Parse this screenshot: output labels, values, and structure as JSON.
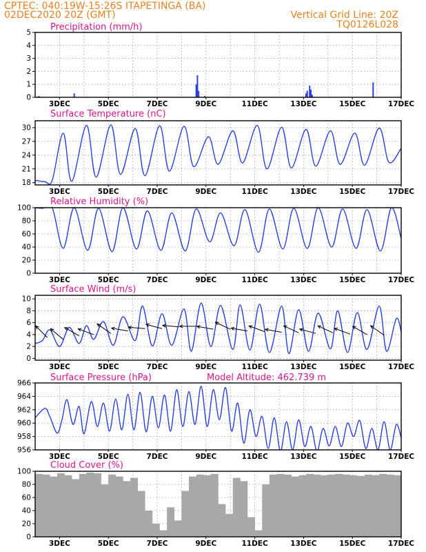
{
  "header": {
    "line1_left": "CPTEC:   040:19W-15:26S   ITAPETINGA (BA)",
    "line2_left": "02DEC2020 20Z (GMT)",
    "line1_right": "Vertical Grid Line: 20Z",
    "line2_right": "TQ0126L028"
  },
  "colors": {
    "header": "#e8821e",
    "title": "#e0148c",
    "line": "#2a3fe0",
    "cloud": "#a8a8a8",
    "arrow": "#000000"
  },
  "chart_data": [
    {
      "type": "bar",
      "title": "Precipitation (mm/h)",
      "ylim": [
        0,
        5
      ],
      "yticks": [
        0,
        1,
        2,
        3,
        4,
        5
      ],
      "xticks": [
        "3DEC",
        "5DEC",
        "7DEC",
        "9DEC",
        "11DEC",
        "13DEC",
        "15DEC",
        "17DEC"
      ],
      "series": [
        {
          "x": [
            0.15,
            1.6,
            6.6,
            6.65,
            6.7,
            6.95,
            11.1,
            11.15,
            11.25,
            11.3,
            11.35,
            13.85
          ],
          "values": [
            0.1,
            0.3,
            1.0,
            1.7,
            0.5,
            0.1,
            0.3,
            0.5,
            0.9,
            0.6,
            0.2,
            1.15
          ]
        }
      ]
    },
    {
      "type": "line",
      "title": "Surface Temperature (nC)",
      "ylim": [
        17.5,
        31.5
      ],
      "yticks": [
        18,
        21,
        24,
        27,
        30
      ],
      "xticks": [
        "3DEC",
        "5DEC",
        "7DEC",
        "9DEC",
        "11DEC",
        "13DEC",
        "15DEC",
        "17DEC"
      ],
      "series": [
        {
          "x": [
            0,
            0.4,
            0.7,
            1.15,
            1.5,
            2.1,
            2.5,
            3.1,
            3.5,
            4.1,
            4.5,
            5.1,
            5.5,
            6.1,
            6.5,
            7.1,
            7.5,
            8.1,
            8.5,
            9.1,
            9.5,
            10.1,
            10.5,
            11.1,
            11.5,
            12.1,
            12.5,
            13.1,
            13.5,
            14.1,
            14.5,
            15.0
          ],
          "values": [
            18.5,
            18.2,
            18.5,
            28.8,
            18.3,
            30.5,
            19.2,
            30.6,
            19.8,
            29.8,
            19.5,
            30.4,
            20.5,
            30.3,
            21.5,
            28.0,
            22.0,
            29.3,
            22.3,
            30.5,
            21.0,
            30.1,
            21.2,
            29.6,
            21.6,
            29.3,
            22.0,
            28.8,
            21.8,
            29.9,
            22.4,
            25.5
          ]
        }
      ]
    },
    {
      "type": "line",
      "title": "Relative Humidity (%)",
      "ylim": [
        0,
        100
      ],
      "yticks": [
        0,
        20,
        40,
        60,
        80,
        100
      ],
      "xticks": [
        "3DEC",
        "5DEC",
        "7DEC",
        "9DEC",
        "11DEC",
        "13DEC",
        "15DEC",
        "17DEC"
      ],
      "series": [
        {
          "x": [
            0,
            0.3,
            0.7,
            1.15,
            1.6,
            2.15,
            2.6,
            3.15,
            3.6,
            4.15,
            4.6,
            5.15,
            5.6,
            6.15,
            6.6,
            7.15,
            7.6,
            8.15,
            8.6,
            9.15,
            9.6,
            10.15,
            10.6,
            11.15,
            11.6,
            12.15,
            12.6,
            13.15,
            13.6,
            14.15,
            14.6,
            15.0
          ],
          "values": [
            100,
            99,
            100,
            38,
            100,
            35,
            99,
            33,
            100,
            37,
            95,
            35,
            92,
            34,
            98,
            48,
            92,
            42,
            97,
            32,
            98,
            37,
            99,
            38,
            100,
            40,
            98,
            38,
            97,
            34,
            100,
            53
          ]
        }
      ]
    },
    {
      "type": "line",
      "title": "Surface Wind (m/s)",
      "ylim": [
        -0.3,
        10.6
      ],
      "yticks": [
        0,
        2,
        4,
        6,
        8,
        10
      ],
      "xticks": [
        "3DEC",
        "5DEC",
        "7DEC",
        "9DEC",
        "11DEC",
        "13DEC",
        "15DEC",
        "17DEC"
      ],
      "series": [
        {
          "x": [
            0,
            0.3,
            0.6,
            1.0,
            1.4,
            1.8,
            2.1,
            2.4,
            2.8,
            3.2,
            3.6,
            4.1,
            4.4,
            4.8,
            5.2,
            5.6,
            6.1,
            6.4,
            6.8,
            7.2,
            7.6,
            8.1,
            8.4,
            8.8,
            9.2,
            9.6,
            10.1,
            10.4,
            10.8,
            11.2,
            11.6,
            12.1,
            12.4,
            12.8,
            13.2,
            13.6,
            14.1,
            14.4,
            14.8,
            15.0
          ],
          "values": [
            2.5,
            3.0,
            4.8,
            2.0,
            5.2,
            2.5,
            5.5,
            3.2,
            6.2,
            2.2,
            7.0,
            3.0,
            8.8,
            2.1,
            7.5,
            2.2,
            8.3,
            1.2,
            9.3,
            2.0,
            8.9,
            1.5,
            9.0,
            1.4,
            9.1,
            1.0,
            8.8,
            0.8,
            8.2,
            1.2,
            7.6,
            1.6,
            8.0,
            1.0,
            7.7,
            1.5,
            8.8,
            1.2,
            6.7,
            4.5
          ]
        }
      ],
      "wind_vectors": [
        {
          "x": 0.5,
          "speed": 3.5,
          "dir_deg": 225
        },
        {
          "x": 1.15,
          "speed": 3.2,
          "dir_deg": 230
        },
        {
          "x": 1.8,
          "speed": 3.8,
          "dir_deg": 240
        },
        {
          "x": 2.4,
          "speed": 4.0,
          "dir_deg": 250
        },
        {
          "x": 3.1,
          "speed": 4.2,
          "dir_deg": 235
        },
        {
          "x": 3.8,
          "speed": 4.6,
          "dir_deg": 260
        },
        {
          "x": 4.5,
          "speed": 5.0,
          "dir_deg": 265
        },
        {
          "x": 5.2,
          "speed": 5.0,
          "dir_deg": 255
        },
        {
          "x": 5.9,
          "speed": 5.3,
          "dir_deg": 265
        },
        {
          "x": 6.6,
          "speed": 5.4,
          "dir_deg": 270
        },
        {
          "x": 7.3,
          "speed": 4.9,
          "dir_deg": 260
        },
        {
          "x": 8.0,
          "speed": 4.9,
          "dir_deg": 245
        },
        {
          "x": 8.7,
          "speed": 4.6,
          "dir_deg": 260
        },
        {
          "x": 9.4,
          "speed": 4.5,
          "dir_deg": 250
        },
        {
          "x": 10.1,
          "speed": 4.4,
          "dir_deg": 260
        },
        {
          "x": 10.8,
          "speed": 4.3,
          "dir_deg": 245
        },
        {
          "x": 11.5,
          "speed": 4.2,
          "dir_deg": 255
        },
        {
          "x": 12.2,
          "speed": 4.3,
          "dir_deg": 245
        },
        {
          "x": 12.9,
          "speed": 4.1,
          "dir_deg": 250
        },
        {
          "x": 13.6,
          "speed": 4.0,
          "dir_deg": 240
        },
        {
          "x": 14.3,
          "speed": 3.9,
          "dir_deg": 235
        }
      ]
    },
    {
      "type": "line",
      "title": "Surface Pressure (hPa)",
      "annotation": "Model Altitude: 462.739  m",
      "ylim": [
        956,
        966
      ],
      "yticks": [
        956,
        958,
        960,
        962,
        964,
        966
      ],
      "xticks": [
        "3DEC",
        "5DEC",
        "7DEC",
        "9DEC",
        "11DEC",
        "13DEC",
        "15DEC",
        "17DEC"
      ],
      "series": [
        {
          "x": [
            0,
            0.4,
            0.6,
            0.9,
            1.1,
            1.3,
            1.55,
            1.8,
            2.0,
            2.3,
            2.55,
            2.8,
            3.05,
            3.3,
            3.55,
            3.8,
            4.05,
            4.3,
            4.55,
            4.8,
            5.05,
            5.3,
            5.55,
            5.8,
            6.05,
            6.3,
            6.55,
            6.8,
            7.05,
            7.3,
            7.55,
            7.8,
            8.05,
            8.3,
            8.55,
            8.8,
            9.05,
            9.3,
            9.55,
            9.8,
            10.05,
            10.3,
            10.55,
            10.8,
            11.05,
            11.3,
            11.55,
            11.8,
            12.05,
            12.3,
            12.55,
            12.8,
            13.05,
            13.3,
            13.55,
            13.8,
            14.05,
            14.3,
            14.55,
            14.8,
            15.0
          ],
          "values": [
            960.8,
            962.2,
            961.0,
            958.5,
            960.5,
            963.5,
            959.8,
            962.5,
            958.4,
            963.2,
            959.5,
            963.0,
            958.8,
            963.6,
            959.0,
            964.3,
            959.0,
            964.6,
            958.7,
            964.0,
            959.3,
            964.2,
            958.8,
            965.0,
            959.5,
            964.7,
            959.8,
            965.5,
            959.5,
            965.0,
            960.5,
            965.3,
            958.8,
            963.0,
            957.0,
            962.0,
            958.0,
            961.0,
            956.2,
            960.8,
            955.8,
            960.2,
            956.0,
            960.5,
            956.5,
            959.5,
            955.8,
            959.2,
            956.6,
            959.5,
            956.5,
            960.0,
            958.0,
            960.4,
            956.2,
            959.2,
            956.0,
            960.2,
            956.0,
            959.8,
            957.8
          ]
        }
      ]
    },
    {
      "type": "bar",
      "title": "Cloud Cover (%)",
      "ylim": [
        0,
        100
      ],
      "yticks": [
        0,
        20,
        40,
        60,
        80,
        100
      ],
      "xticks": [
        "3DEC",
        "5DEC",
        "7DEC",
        "9DEC",
        "11DEC",
        "13DEC",
        "15DEC",
        "17DEC"
      ],
      "series": [
        {
          "x": [
            0,
            0.3,
            0.6,
            0.9,
            1.2,
            1.5,
            1.8,
            2.1,
            2.4,
            2.7,
            3.0,
            3.3,
            3.6,
            3.9,
            4.2,
            4.5,
            4.8,
            5.1,
            5.4,
            5.7,
            6.0,
            6.3,
            6.6,
            6.9,
            7.2,
            7.5,
            7.8,
            8.1,
            8.4,
            8.7,
            9.0,
            9.3,
            9.6,
            9.9,
            10.2,
            10.5,
            10.8,
            11.1,
            11.4,
            11.7,
            12.0,
            12.3,
            12.6,
            12.9,
            13.2,
            13.5,
            13.8,
            14.1,
            14.4,
            14.7
          ],
          "values": [
            96,
            95,
            92,
            97,
            94,
            88,
            96,
            98,
            97,
            80,
            95,
            92,
            85,
            90,
            70,
            40,
            20,
            10,
            45,
            25,
            70,
            92,
            95,
            94,
            96,
            50,
            35,
            90,
            85,
            30,
            10,
            80,
            95,
            96,
            95,
            92,
            94,
            96,
            95,
            94,
            95,
            96,
            95,
            94,
            93,
            95,
            94,
            96,
            95,
            94
          ]
        }
      ]
    }
  ]
}
